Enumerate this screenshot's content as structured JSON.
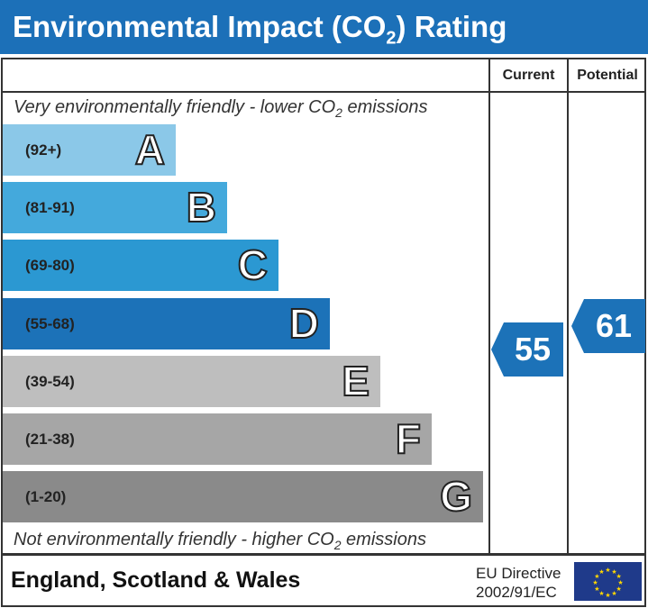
{
  "title": "Environmental Impact (CO",
  "title_sub": "2",
  "title_end": ") Rating",
  "columns": {
    "current": "Current",
    "potential": "Potential"
  },
  "top_note": {
    "text": "Very environmentally friendly - lower CO",
    "sub": "2",
    "end": " emissions"
  },
  "bottom_note": {
    "text": "Not environmentally friendly - higher CO",
    "sub": "2",
    "end": " emissions"
  },
  "bands": [
    {
      "letter": "A",
      "range": "(92+)",
      "color": "#8bc8e8"
    },
    {
      "letter": "B",
      "range": "(81-91)",
      "color": "#44a9dc"
    },
    {
      "letter": "C",
      "range": "(69-80)",
      "color": "#2b98d2"
    },
    {
      "letter": "D",
      "range": "(55-68)",
      "color": "#1c72b8"
    },
    {
      "letter": "E",
      "range": "(39-54)",
      "color": "#bebebe"
    },
    {
      "letter": "F",
      "range": "(21-38)",
      "color": "#a6a6a6"
    },
    {
      "letter": "G",
      "range": "(1-20)",
      "color": "#8a8a8a"
    }
  ],
  "current": {
    "value": "55",
    "band": "D"
  },
  "potential": {
    "value": "61",
    "band": "D"
  },
  "footer": {
    "country": "England, Scotland & Wales",
    "directive_line1": "EU Directive",
    "directive_line2": "2002/91/EC"
  }
}
